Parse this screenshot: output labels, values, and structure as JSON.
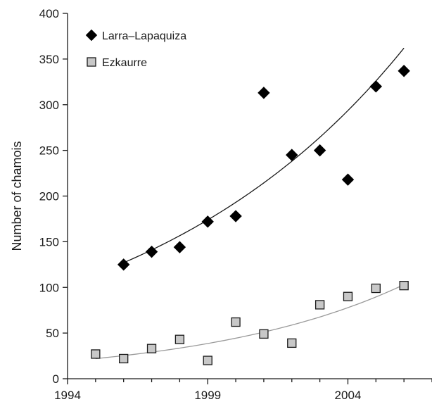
{
  "chart_data": {
    "type": "scatter",
    "title": "",
    "xlabel": "",
    "ylabel": "Number of chamois",
    "xlim": [
      1994,
      2007
    ],
    "ylim": [
      0,
      400
    ],
    "xticks": [
      1994,
      1999,
      2004
    ],
    "yticks": [
      0,
      50,
      100,
      150,
      200,
      250,
      300,
      350,
      400
    ],
    "grid": false,
    "legend_position": "top-left",
    "series": [
      {
        "name": "Larra–Lapaquiza",
        "marker": "diamond-icon",
        "marker_color": "#000000",
        "x": [
          1996,
          1997,
          1998,
          1999,
          2000,
          2001,
          2002,
          2003,
          2004,
          2005,
          2006
        ],
        "y": [
          125,
          139,
          144,
          172,
          178,
          313,
          245,
          250,
          218,
          320,
          337
        ],
        "trend": {
          "type": "exponential",
          "start": [
            1996,
            127
          ],
          "end": [
            2006,
            362
          ],
          "color": "#1a1a1a"
        }
      },
      {
        "name": "Ezkaurre",
        "marker": "square-icon",
        "marker_color": "#c8c8c8",
        "x": [
          1995,
          1996,
          1997,
          1998,
          1999,
          2000,
          2001,
          2002,
          2003,
          2004,
          2005,
          2006
        ],
        "y": [
          27,
          22,
          33,
          43,
          20,
          62,
          49,
          39,
          81,
          90,
          99,
          102
        ],
        "trend": {
          "type": "exponential",
          "start": [
            1995,
            22
          ],
          "end": [
            2006,
            103
          ],
          "color": "#9a9a9a"
        }
      }
    ]
  }
}
